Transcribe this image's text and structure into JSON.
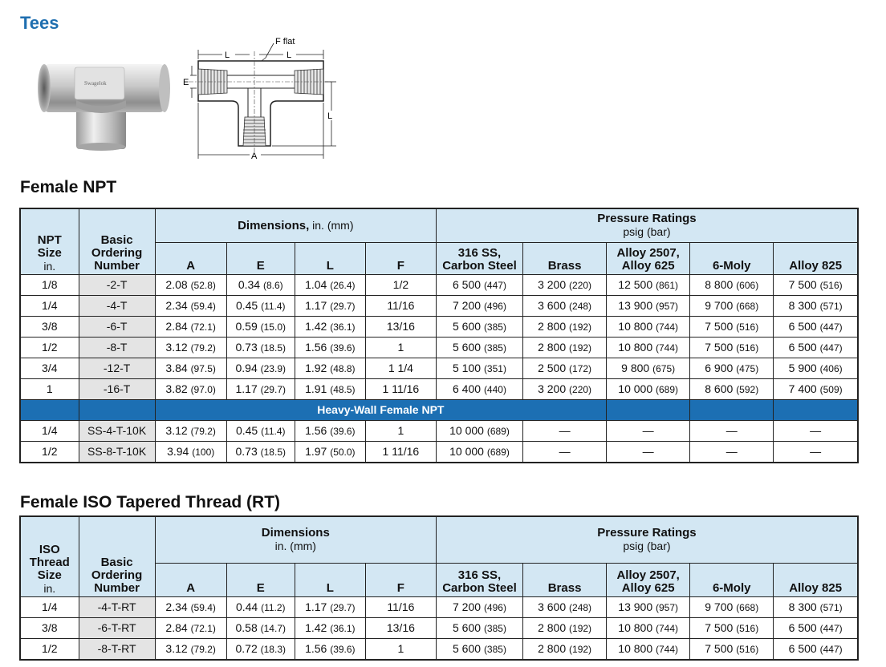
{
  "page": {
    "title": "Tees"
  },
  "diagram": {
    "f_flat": "F flat",
    "l": "L",
    "e": "E",
    "a": "A"
  },
  "photo": {
    "brand": "Swagelok"
  },
  "npt": {
    "title": "Female NPT",
    "headers": {
      "size": [
        "NPT",
        "Size",
        "in."
      ],
      "ordering": [
        "Basic",
        "Ordering",
        "Number"
      ],
      "dimensions": "Dimensions,",
      "dimensions_unit": " in. (mm)",
      "pressure": "Pressure Ratings",
      "pressure_unit": "psig (bar)",
      "dims": [
        "A",
        "E",
        "L",
        "F"
      ],
      "materials": [
        [
          "316 SS,",
          "Carbon Steel"
        ],
        [
          "Brass"
        ],
        [
          "Alloy 2507,",
          "Alloy 625"
        ],
        [
          "6-Moly"
        ],
        [
          "Alloy 825"
        ]
      ]
    },
    "rows": [
      {
        "size": "1/8",
        "ordering": "-2-T",
        "a": "2.08",
        "a_mm": "(52.8)",
        "e": "0.34",
        "e_mm": "(8.6)",
        "l": "1.04",
        "l_mm": "(26.4)",
        "f": "1/2",
        "p": [
          [
            "6 500",
            "(447)"
          ],
          [
            "3 200",
            "(220)"
          ],
          [
            "12 500",
            "(861)"
          ],
          [
            "8 800",
            "(606)"
          ],
          [
            "7 500",
            "(516)"
          ]
        ]
      },
      {
        "size": "1/4",
        "ordering": "-4-T",
        "a": "2.34",
        "a_mm": "(59.4)",
        "e": "0.45",
        "e_mm": "(11.4)",
        "l": "1.17",
        "l_mm": "(29.7)",
        "f": "11/16",
        "p": [
          [
            "7 200",
            "(496)"
          ],
          [
            "3 600",
            "(248)"
          ],
          [
            "13 900",
            "(957)"
          ],
          [
            "9 700",
            "(668)"
          ],
          [
            "8 300",
            "(571)"
          ]
        ]
      },
      {
        "size": "3/8",
        "ordering": "-6-T",
        "a": "2.84",
        "a_mm": "(72.1)",
        "e": "0.59",
        "e_mm": "(15.0)",
        "l": "1.42",
        "l_mm": "(36.1)",
        "f": "13/16",
        "p": [
          [
            "5 600",
            "(385)"
          ],
          [
            "2 800",
            "(192)"
          ],
          [
            "10 800",
            "(744)"
          ],
          [
            "7 500",
            "(516)"
          ],
          [
            "6 500",
            "(447)"
          ]
        ]
      },
      {
        "size": "1/2",
        "ordering": "-8-T",
        "a": "3.12",
        "a_mm": "(79.2)",
        "e": "0.73",
        "e_mm": "(18.5)",
        "l": "1.56",
        "l_mm": "(39.6)",
        "f": "1",
        "p": [
          [
            "5 600",
            "(385)"
          ],
          [
            "2 800",
            "(192)"
          ],
          [
            "10 800",
            "(744)"
          ],
          [
            "7 500",
            "(516)"
          ],
          [
            "6 500",
            "(447)"
          ]
        ]
      },
      {
        "size": "3/4",
        "ordering": "-12-T",
        "a": "3.84",
        "a_mm": "(97.5)",
        "e": "0.94",
        "e_mm": "(23.9)",
        "l": "1.92",
        "l_mm": "(48.8)",
        "f": "1 1/4",
        "p": [
          [
            "5 100",
            "(351)"
          ],
          [
            "2 500",
            "(172)"
          ],
          [
            "9 800",
            "(675)"
          ],
          [
            "6 900",
            "(475)"
          ],
          [
            "5 900",
            "(406)"
          ]
        ]
      },
      {
        "size": "1",
        "ordering": "-16-T",
        "a": "3.82",
        "a_mm": "(97.0)",
        "e": "1.17",
        "e_mm": "(29.7)",
        "l": "1.91",
        "l_mm": "(48.5)",
        "f": "1 11/16",
        "p": [
          [
            "6 400",
            "(440)"
          ],
          [
            "3 200",
            "(220)"
          ],
          [
            "10 000",
            "(689)"
          ],
          [
            "8 600",
            "(592)"
          ],
          [
            "7 400",
            "(509)"
          ]
        ]
      }
    ],
    "band": "Heavy-Wall Female NPT",
    "hw_rows": [
      {
        "size": "1/4",
        "ordering": "SS-4-T-10K",
        "a": "3.12",
        "a_mm": "(79.2)",
        "e": "0.45",
        "e_mm": "(11.4)",
        "l": "1.56",
        "l_mm": "(39.6)",
        "f": "1",
        "p": [
          [
            "10 000",
            "(689)"
          ],
          [
            "—",
            ""
          ],
          [
            "—",
            ""
          ],
          [
            "—",
            ""
          ],
          [
            "—",
            ""
          ]
        ]
      },
      {
        "size": "1/2",
        "ordering": "SS-8-T-10K",
        "a": "3.94",
        "a_mm": "(100)",
        "e": "0.73",
        "e_mm": "(18.5)",
        "l": "1.97",
        "l_mm": "(50.0)",
        "f": "1 11/16",
        "p": [
          [
            "10 000",
            "(689)"
          ],
          [
            "—",
            ""
          ],
          [
            "—",
            ""
          ],
          [
            "—",
            ""
          ],
          [
            "—",
            ""
          ]
        ]
      }
    ]
  },
  "iso": {
    "title": "Female ISO Tapered Thread (RT)",
    "headers": {
      "size": [
        "ISO",
        "Thread",
        "Size",
        "in."
      ],
      "ordering": [
        "Basic",
        "Ordering",
        "Number"
      ],
      "dimensions": "Dimensions",
      "dimensions_unit": "in. (mm)",
      "pressure": "Pressure Ratings",
      "pressure_unit": "psig (bar)",
      "dims": [
        "A",
        "E",
        "L",
        "F"
      ],
      "materials": [
        [
          "316 SS,",
          "Carbon Steel"
        ],
        [
          "Brass"
        ],
        [
          "Alloy 2507,",
          "Alloy 625"
        ],
        [
          "6-Moly"
        ],
        [
          "Alloy 825"
        ]
      ]
    },
    "rows": [
      {
        "size": "1/4",
        "ordering": "-4-T-RT",
        "a": "2.34",
        "a_mm": "(59.4)",
        "e": "0.44",
        "e_mm": "(11.2)",
        "l": "1.17",
        "l_mm": "(29.7)",
        "f": "11/16",
        "p": [
          [
            "7 200",
            "(496)"
          ],
          [
            "3 600",
            "(248)"
          ],
          [
            "13 900",
            "(957)"
          ],
          [
            "9 700",
            "(668)"
          ],
          [
            "8 300",
            "(571)"
          ]
        ]
      },
      {
        "size": "3/8",
        "ordering": "-6-T-RT",
        "a": "2.84",
        "a_mm": "(72.1)",
        "e": "0.58",
        "e_mm": "(14.7)",
        "l": "1.42",
        "l_mm": "(36.1)",
        "f": "13/16",
        "p": [
          [
            "5 600",
            "(385)"
          ],
          [
            "2 800",
            "(192)"
          ],
          [
            "10 800",
            "(744)"
          ],
          [
            "7 500",
            "(516)"
          ],
          [
            "6 500",
            "(447)"
          ]
        ]
      },
      {
        "size": "1/2",
        "ordering": "-8-T-RT",
        "a": "3.12",
        "a_mm": "(79.2)",
        "e": "0.72",
        "e_mm": "(18.3)",
        "l": "1.56",
        "l_mm": "(39.6)",
        "f": "1",
        "p": [
          [
            "5 600",
            "(385)"
          ],
          [
            "2 800",
            "(192)"
          ],
          [
            "10 800",
            "(744)"
          ],
          [
            "7 500",
            "(516)"
          ],
          [
            "6 500",
            "(447)"
          ]
        ]
      }
    ]
  }
}
